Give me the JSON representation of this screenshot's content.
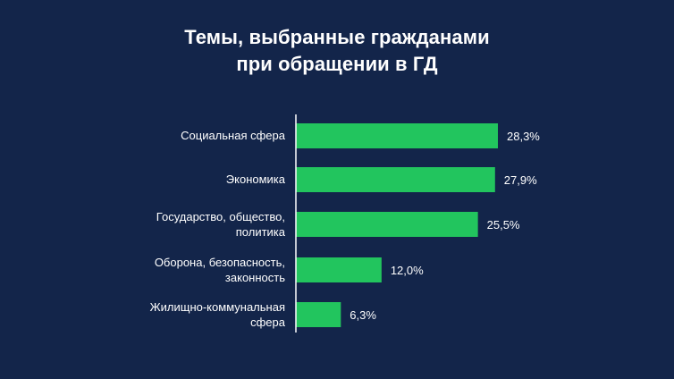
{
  "chart_data": {
    "type": "bar",
    "orientation": "horizontal",
    "title": [
      "Темы, выбранные гражданами",
      "при обращении в ГД"
    ],
    "categories": [
      [
        "Социальная сфера"
      ],
      [
        "Экономика"
      ],
      [
        "Государство, общество,",
        "политика"
      ],
      [
        "Оборона, безопасность,",
        "законность"
      ],
      [
        "Жилищно-коммунальная",
        "сфера"
      ]
    ],
    "values": [
      28.3,
      27.9,
      25.5,
      12.0,
      6.3
    ],
    "value_labels": [
      "28,3%",
      "27,9%",
      "25,5%",
      "12,0%",
      "6,3%"
    ],
    "xlim": [
      0,
      28.3
    ],
    "grid": false,
    "legend": "none",
    "bar_color": "#22c55e",
    "axis_color": "#ffffff"
  }
}
